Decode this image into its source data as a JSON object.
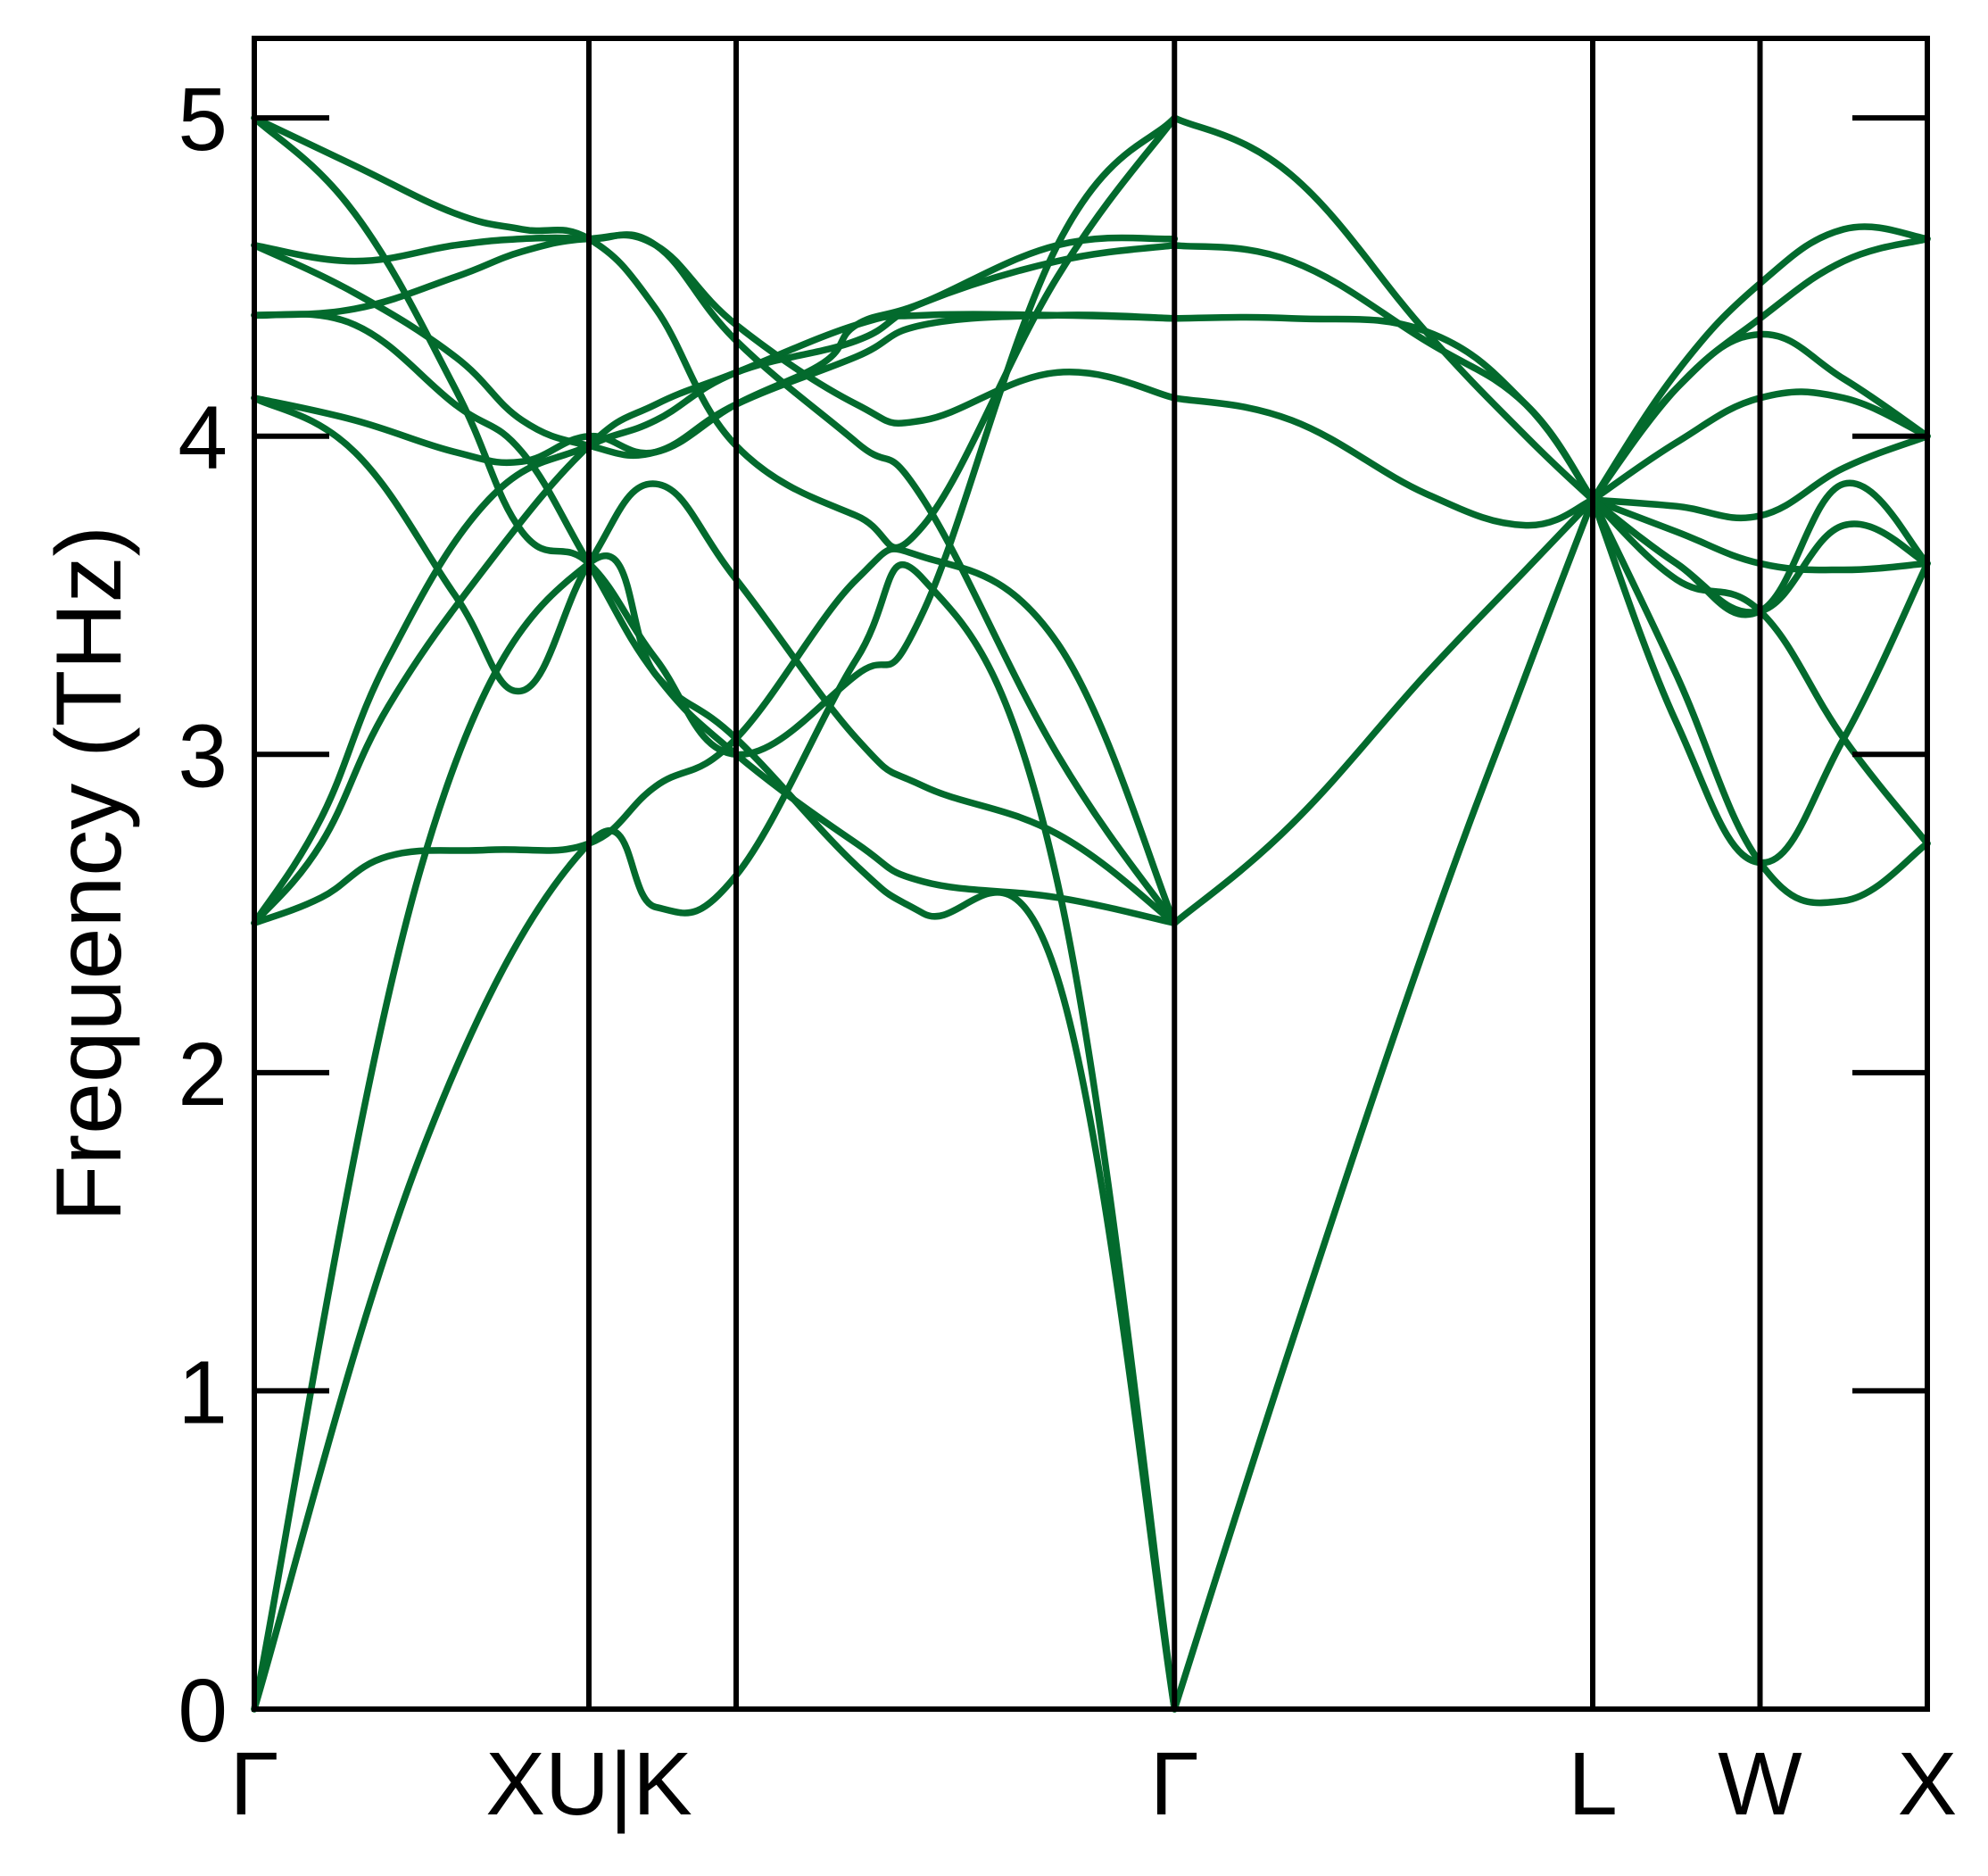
{
  "chart_data": {
    "type": "line",
    "ylabel": "Frequency (THz)",
    "ylim": [
      0,
      5.25
    ],
    "grid": false,
    "legend": "none",
    "line_color": "#036a2d",
    "yticks": [
      {
        "value": 0,
        "label": "0"
      },
      {
        "value": 1,
        "label": "1"
      },
      {
        "value": 2,
        "label": "2"
      },
      {
        "value": 3,
        "label": "3"
      },
      {
        "value": 4,
        "label": "4"
      },
      {
        "value": 5,
        "label": "5"
      }
    ],
    "xticks": [
      {
        "label": "Γ",
        "pos": 0.0
      },
      {
        "label": "XU|K",
        "pos": 1.0
      },
      {
        "label": "Γ",
        "pos": 2.75
      },
      {
        "label": "L",
        "pos": 4.0
      },
      {
        "label": "W",
        "pos": 4.5
      },
      {
        "label": "X",
        "pos": 5.0
      }
    ],
    "segment_boundaries": [
      0.0,
      1.0,
      1.44,
      2.75,
      4.0,
      4.5,
      5.0
    ],
    "xlim": [
      0.0,
      5.0
    ],
    "series": [
      {
        "x": [
          0,
          0.5,
          1.0,
          1.2,
          1.44,
          1.8,
          2.0,
          2.4,
          2.75
        ],
        "values": [
          0,
          1.75,
          2.72,
          2.52,
          2.62,
          3.3,
          3.55,
          2.6,
          0
        ]
      },
      {
        "x": [
          0,
          0.5,
          1.0,
          1.2,
          1.44,
          1.8,
          2.0,
          2.4,
          2.75
        ],
        "values": [
          0,
          2.65,
          3.6,
          3.25,
          3.05,
          2.65,
          2.5,
          2.3,
          0
        ]
      },
      {
        "x": [
          0,
          0.2,
          0.4,
          0.7,
          1.0,
          1.2,
          1.44,
          1.8,
          2.0,
          2.4,
          2.75
        ],
        "values": [
          2.47,
          2.55,
          2.68,
          2.7,
          2.72,
          2.9,
          3.05,
          3.55,
          3.62,
          3.35,
          2.47
        ]
      },
      {
        "x": [
          0,
          0.2,
          0.4,
          0.7,
          1.0,
          1.2,
          1.44,
          1.8,
          2.0,
          2.4,
          2.75
        ],
        "values": [
          2.47,
          2.72,
          3.15,
          3.6,
          3.97,
          4.1,
          4.2,
          4.35,
          4.38,
          4.38,
          4.37
        ]
      },
      {
        "x": [
          0,
          0.2,
          0.4,
          0.7,
          1.0,
          1.2,
          1.44,
          1.8,
          2.0,
          2.4,
          2.75
        ],
        "values": [
          2.47,
          2.8,
          3.3,
          3.8,
          3.97,
          4.05,
          4.2,
          4.3,
          4.42,
          4.55,
          4.6
        ]
      },
      {
        "x": [
          0,
          0.3,
          0.6,
          0.8,
          1.0,
          1.2,
          1.44,
          1.7,
          1.8,
          2.0,
          2.4,
          2.75
        ],
        "values": [
          4.12,
          4.05,
          3.95,
          3.92,
          4.0,
          3.95,
          4.1,
          4.23,
          4.35,
          4.42,
          4.6,
          4.62
        ]
      },
      {
        "x": [
          0,
          0.3,
          0.6,
          0.8,
          1.0,
          1.2,
          1.44,
          1.8,
          2.0,
          2.4,
          2.75
        ],
        "values": [
          4.12,
          3.95,
          3.5,
          3.2,
          3.6,
          3.85,
          3.55,
          3.05,
          2.9,
          2.75,
          2.47
        ]
      },
      {
        "x": [
          0,
          0.3,
          0.6,
          0.8,
          1.0,
          1.2,
          1.44,
          1.8,
          2.0,
          2.4,
          2.75
        ],
        "values": [
          4.38,
          4.35,
          4.1,
          3.95,
          3.6,
          3.25,
          3.0,
          2.72,
          2.6,
          2.55,
          2.47
        ]
      },
      {
        "x": [
          0,
          0.3,
          0.6,
          0.8,
          1.0,
          1.2,
          1.44,
          1.8,
          2.0,
          2.4,
          2.75
        ],
        "values": [
          4.6,
          4.45,
          4.25,
          4.05,
          3.97,
          3.95,
          4.1,
          4.25,
          4.35,
          4.38,
          4.37
        ]
      },
      {
        "x": [
          0,
          0.3,
          0.6,
          0.8,
          1.0,
          1.2,
          1.44,
          1.8,
          2.0,
          2.4,
          2.75
        ],
        "values": [
          4.6,
          4.55,
          4.6,
          4.62,
          4.62,
          4.6,
          4.3,
          3.98,
          3.8,
          3.0,
          2.47
        ]
      },
      {
        "x": [
          0,
          0.3,
          0.6,
          0.8,
          1.0,
          1.2,
          1.44,
          1.8,
          2.0,
          2.4,
          2.75
        ],
        "values": [
          4.38,
          4.4,
          4.5,
          4.58,
          4.62,
          4.6,
          4.35,
          4.1,
          4.05,
          4.2,
          4.12
        ]
      },
      {
        "x": [
          0,
          0.3,
          0.6,
          0.8,
          1.0,
          1.2,
          1.44,
          1.8,
          2.0,
          2.4,
          2.75
        ],
        "values": [
          5.0,
          4.85,
          4.7,
          4.65,
          4.62,
          4.4,
          3.97,
          3.75,
          3.72,
          4.5,
          5.0
        ]
      },
      {
        "x": [
          0,
          0.3,
          0.6,
          0.8,
          1.0,
          1.2,
          1.44,
          1.8,
          2.0,
          2.4,
          2.75
        ],
        "values": [
          5.0,
          4.7,
          4.15,
          3.7,
          3.6,
          3.3,
          3.0,
          3.25,
          3.45,
          4.6,
          5.0
        ]
      },
      {
        "x": [
          2.75,
          3.1,
          3.5,
          3.8,
          4.0
        ],
        "values": [
          0,
          1.15,
          2.4,
          3.25,
          3.8
        ]
      },
      {
        "x": [
          2.75,
          3.1,
          3.5,
          3.8,
          4.0
        ],
        "values": [
          2.47,
          2.78,
          3.25,
          3.58,
          3.8
        ]
      },
      {
        "x": [
          2.75,
          3.1,
          3.5,
          3.8,
          4.0
        ],
        "values": [
          4.12,
          4.05,
          3.82,
          3.72,
          3.8
        ]
      },
      {
        "x": [
          2.75,
          3.1,
          3.5,
          3.8,
          4.0
        ],
        "values": [
          4.37,
          4.37,
          4.33,
          4.1,
          3.8
        ]
      },
      {
        "x": [
          2.75,
          3.1,
          3.5,
          3.8,
          4.0
        ],
        "values": [
          4.6,
          4.55,
          4.3,
          4.1,
          3.8
        ]
      },
      {
        "x": [
          2.75,
          3.1,
          3.5,
          3.8,
          4.0
        ],
        "values": [
          5.0,
          4.82,
          4.33,
          4.0,
          3.8
        ]
      },
      {
        "x": [
          4.0,
          4.25,
          4.5,
          4.75,
          5.0
        ],
        "values": [
          3.8,
          3.25,
          2.66,
          2.54,
          2.72
        ]
      },
      {
        "x": [
          4.0,
          4.25,
          4.5,
          4.75,
          5.0
        ],
        "values": [
          3.8,
          3.6,
          3.45,
          3.72,
          3.6
        ]
      },
      {
        "x": [
          4.0,
          4.25,
          4.5,
          4.75,
          5.0
        ],
        "values": [
          3.8,
          3.7,
          3.6,
          3.58,
          3.6
        ]
      },
      {
        "x": [
          4.0,
          4.25,
          4.5,
          4.75,
          5.0
        ],
        "values": [
          3.8,
          3.78,
          3.75,
          3.9,
          4.0
        ]
      },
      {
        "x": [
          4.0,
          4.25,
          4.5,
          4.75,
          5.0
        ],
        "values": [
          3.8,
          3.98,
          4.12,
          4.12,
          4.0
        ]
      },
      {
        "x": [
          4.0,
          4.25,
          4.5,
          4.75,
          5.0
        ],
        "values": [
          3.8,
          4.15,
          4.37,
          4.55,
          4.62
        ]
      },
      {
        "x": [
          4.0,
          4.25,
          4.5,
          4.75,
          5.0
        ],
        "values": [
          3.8,
          4.2,
          4.48,
          4.65,
          4.62
        ]
      },
      {
        "x": [
          4.0,
          4.25,
          4.5,
          4.75,
          5.0
        ],
        "values": [
          3.8,
          4.15,
          4.32,
          4.18,
          4.0
        ]
      },
      {
        "x": [
          4.0,
          4.25,
          4.5,
          4.75,
          5.0
        ],
        "values": [
          3.8,
          3.55,
          3.45,
          3.05,
          2.72
        ]
      },
      {
        "x": [
          4.0,
          4.25,
          4.5,
          4.75,
          5.0
        ],
        "values": [
          3.8,
          3.1,
          2.66,
          3.05,
          3.6
        ]
      },
      {
        "x": [
          4.0,
          4.25,
          4.5,
          4.75,
          5.0
        ],
        "values": [
          3.8,
          3.6,
          3.45,
          3.85,
          3.6
        ]
      }
    ]
  }
}
